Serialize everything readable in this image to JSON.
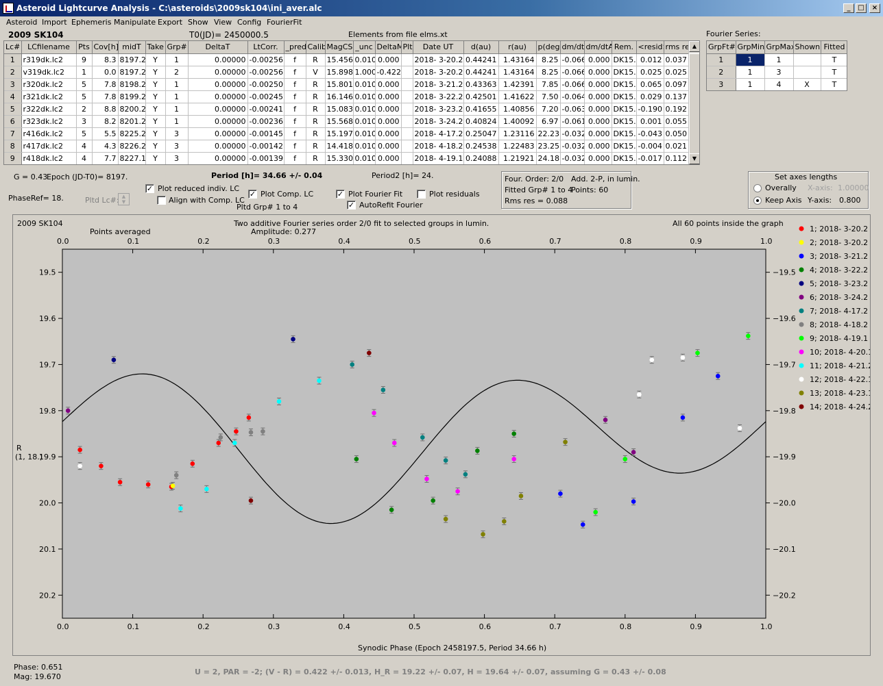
{
  "window": {
    "title": "Asteroid Lightcurve Analysis - C:\\asteroids\\2009sk104\\ini_aver.alc",
    "min": "_",
    "max": "□",
    "close": "×"
  },
  "menu": [
    "Asteroid",
    "Import",
    "Ephemeris",
    "Manipulate",
    "Export",
    "Show",
    "View",
    "Config",
    "FourierFit"
  ],
  "header": {
    "asteroid": "2009 SK104",
    "t0": "T0(JD)= 2450000.5",
    "elements": "Elements from file elms.xt",
    "fourier_label": "Fourier Series:"
  },
  "lc_table": {
    "columns": [
      "Lc#",
      "LCfilename",
      "Pts",
      "Cov[h]",
      "midT",
      "Take",
      "Grp#",
      "DeltaT",
      "LtCorr.",
      "_pred.",
      "Calib.",
      "MagCS",
      "_unc",
      "DeltaM",
      "Plt",
      "Date UT",
      "d(au)",
      "r(au)",
      "p(deg)",
      "dm/dt",
      "dm/dtA",
      "Rem.",
      "<resid>",
      "rms res"
    ],
    "rows": [
      [
        "1",
        "r319dk.lc2",
        "9",
        "8.3",
        "8197.2",
        "Y",
        "1",
        "0.00000",
        "-0.00256",
        "f",
        "R",
        "15.456",
        "0.010",
        "0.000",
        "",
        "2018- 3-20.2",
        "0.44241",
        "1.43164",
        "8.25",
        "-0.066",
        "0.000",
        "DK15...",
        "0.012",
        "0.037"
      ],
      [
        "2",
        "v319dk.lc2",
        "1",
        "0.0",
        "8197.2",
        "Y",
        "2",
        "0.00000",
        "-0.00256",
        "f",
        "V",
        "15.898",
        "1.000",
        "-0.422",
        "",
        "2018- 3-20.2",
        "0.44241",
        "1.43164",
        "8.25",
        "-0.066",
        "0.000",
        "DK15...",
        "0.025",
        "0.025"
      ],
      [
        "3",
        "r320dk.lc2",
        "5",
        "7.8",
        "8198.2",
        "Y",
        "1",
        "0.00000",
        "-0.00250",
        "f",
        "R",
        "15.801",
        "0.010",
        "0.000",
        "",
        "2018- 3-21.2",
        "0.43363",
        "1.42391",
        "7.85",
        "-0.066",
        "0.000",
        "DK15...",
        "0.065",
        "0.097"
      ],
      [
        "4",
        "r321dk.lc2",
        "5",
        "7.8",
        "8199.2",
        "Y",
        "1",
        "0.00000",
        "-0.00245",
        "f",
        "R",
        "16.146",
        "0.010",
        "0.000",
        "",
        "2018- 3-22.2",
        "0.42501",
        "1.41622",
        "7.50",
        "-0.064",
        "0.000",
        "DK15...",
        "0.029",
        "0.137"
      ],
      [
        "5",
        "r322dk.lc2",
        "2",
        "8.8",
        "8200.2",
        "Y",
        "1",
        "0.00000",
        "-0.00241",
        "f",
        "R",
        "15.083",
        "0.010",
        "0.000",
        "",
        "2018- 3-23.2",
        "0.41655",
        "1.40856",
        "7.20",
        "-0.063",
        "0.000",
        "DK15...",
        "-0.190",
        "0.192"
      ],
      [
        "6",
        "r323dk.lc2",
        "3",
        "8.2",
        "8201.2",
        "Y",
        "1",
        "0.00000",
        "-0.00236",
        "f",
        "R",
        "15.568",
        "0.010",
        "0.000",
        "",
        "2018- 3-24.2",
        "0.40824",
        "1.40092",
        "6.97",
        "-0.061",
        "0.000",
        "DK15...",
        "0.001",
        "0.055"
      ],
      [
        "7",
        "r416dk.lc2",
        "5",
        "5.5",
        "8225.2",
        "Y",
        "3",
        "0.00000",
        "-0.00145",
        "f",
        "R",
        "15.197",
        "0.010",
        "0.000",
        "",
        "2018- 4-17.2",
        "0.25047",
        "1.23116",
        "22.23",
        "-0.032",
        "0.000",
        "DK15...",
        "-0.043",
        "0.050"
      ],
      [
        "8",
        "r417dk.lc2",
        "4",
        "4.3",
        "8226.2",
        "Y",
        "3",
        "0.00000",
        "-0.00142",
        "f",
        "R",
        "14.418",
        "0.010",
        "0.000",
        "",
        "2018- 4-18.2",
        "0.24538",
        "1.22483",
        "23.25",
        "-0.032",
        "0.000",
        "DK15...",
        "-0.004",
        "0.021"
      ],
      [
        "9",
        "r418dk.lc2",
        "4",
        "7.7",
        "8227.1",
        "Y",
        "3",
        "0.00000",
        "-0.00139",
        "f",
        "R",
        "15.330",
        "0.010",
        "0.000",
        "",
        "2018- 4-19.1",
        "0.24088",
        "1.21921",
        "24.18",
        "-0.032",
        "0.000",
        "DK15...",
        "-0.017",
        "0.112"
      ]
    ]
  },
  "fourier_table": {
    "columns": [
      "GrpFt#",
      "GrpMin",
      "GrpMax",
      "Shown",
      "Fitted"
    ],
    "rows": [
      [
        "1",
        "1",
        "1",
        "",
        "T"
      ],
      [
        "2",
        "1",
        "3",
        "",
        "T"
      ],
      [
        "3",
        "1",
        "4",
        "X",
        "T"
      ]
    ]
  },
  "controls": {
    "g": "G = 0.43",
    "epoch": "Epoch (JD-T0)= 8197.",
    "phaseref": "PhaseRef= 18.",
    "pltd_lc": "Pltd Lc#:",
    "plot_reduced": "Plot reduced indiv. LC",
    "align": "Align with Comp. LC",
    "plot_comp": "Plot Comp. LC",
    "pltd_grp": "Pltd Grp#  1   to   4",
    "period": "Period [h]= 34.66 +/- 0.04",
    "period2": "Period2 [h]= 24.",
    "plot_fourier": "Plot Fourier Fit",
    "autorefit": "AutoRefit Fourier",
    "plot_resid": "Plot residuals",
    "four_order": "Four. Order:  2/0",
    "add": "Add. 2-P, in lumin.",
    "fitted": "Fitted Grp# 1 to 4",
    "points": "Points: 60",
    "rms": "Rms res     = 0.088",
    "axes_title": "Set axes lengths",
    "overally": "Overally",
    "keep_axis": "Keep Axis",
    "xaxis_lbl": "X-axis:",
    "xaxis_val": "1.00000",
    "yaxis_lbl": "Y-axis:",
    "yaxis_val": "0.800"
  },
  "plot": {
    "asteroid": "2009 SK104",
    "points_averaged": "Points averaged",
    "title": "Two additive Fourier series order 2/0 fit to selected groups in lumin.",
    "amplitude": "Amplitude: 0.277",
    "inside": "All 60 points inside the graph",
    "ylabel1": "R",
    "ylabel2": "(1, 18.)",
    "xlabel": "Synodic Phase (Epoch 2458197.5, Period 34.66 h)"
  },
  "chart_data": {
    "type": "scatter",
    "xlim": [
      0,
      1
    ],
    "ylim": [
      20.25,
      19.45
    ],
    "xticks": [
      "0.0",
      "0.1",
      "0.2",
      "0.3",
      "0.4",
      "0.5",
      "0.6",
      "0.7",
      "0.8",
      "0.9",
      "1.0"
    ],
    "yticks": [
      "19.5",
      "19.6",
      "19.7",
      "19.8",
      "19.9",
      "20.0",
      "20.1",
      "20.2"
    ],
    "fit": {
      "mean": 19.86,
      "a1": 0.055,
      "p1": 0.4,
      "a2": 0.13,
      "p2": 0.38
    },
    "series": [
      {
        "name": "1; 2018- 3-20.2",
        "color": "#ff0000",
        "points": [
          [
            0.025,
            19.885
          ],
          [
            0.055,
            19.92
          ],
          [
            0.082,
            19.955
          ],
          [
            0.122,
            19.96
          ],
          [
            0.155,
            19.965
          ],
          [
            0.185,
            19.915
          ],
          [
            0.222,
            19.87
          ],
          [
            0.247,
            19.845
          ],
          [
            0.265,
            19.815
          ]
        ]
      },
      {
        "name": "2; 2018- 3-20.2",
        "color": "#ffff00",
        "points": [
          [
            0.157,
            19.963
          ]
        ]
      },
      {
        "name": "3; 2018- 3-21.2",
        "color": "#0000ff",
        "points": [
          [
            0.708,
            19.98
          ],
          [
            0.74,
            20.047
          ],
          [
            0.812,
            19.997
          ],
          [
            0.882,
            19.815
          ],
          [
            0.932,
            19.725
          ]
        ]
      },
      {
        "name": "4; 2018- 3-22.2",
        "color": "#008000",
        "points": [
          [
            0.418,
            19.905
          ],
          [
            0.468,
            20.015
          ],
          [
            0.527,
            19.995
          ],
          [
            0.59,
            19.887
          ],
          [
            0.642,
            19.85
          ]
        ]
      },
      {
        "name": "5; 2018- 3-23.2",
        "color": "#000080",
        "points": [
          [
            0.073,
            19.69
          ],
          [
            0.328,
            19.645
          ]
        ]
      },
      {
        "name": "6; 2018- 3-24.2",
        "color": "#800080",
        "points": [
          [
            0.008,
            19.8
          ],
          [
            0.772,
            19.82
          ],
          [
            0.812,
            19.89
          ]
        ]
      },
      {
        "name": "7; 2018- 4-17.2",
        "color": "#008080",
        "points": [
          [
            0.412,
            19.7
          ],
          [
            0.456,
            19.755
          ],
          [
            0.512,
            19.858
          ],
          [
            0.545,
            19.908
          ],
          [
            0.573,
            19.938
          ]
        ]
      },
      {
        "name": "8; 2018- 4-18.2",
        "color": "#808080",
        "points": [
          [
            0.162,
            19.94
          ],
          [
            0.225,
            19.858
          ],
          [
            0.268,
            19.847
          ],
          [
            0.285,
            19.845
          ]
        ]
      },
      {
        "name": "9; 2018- 4-19.1",
        "color": "#00ff00",
        "points": [
          [
            0.758,
            20.02
          ],
          [
            0.8,
            19.905
          ],
          [
            0.903,
            19.675
          ],
          [
            0.975,
            19.638
          ]
        ]
      },
      {
        "name": "10; 2018- 4-20.1",
        "color": "#ff00ff",
        "points": [
          [
            0.443,
            19.805
          ],
          [
            0.472,
            19.87
          ],
          [
            0.518,
            19.948
          ],
          [
            0.562,
            19.975
          ],
          [
            0.642,
            19.905
          ]
        ]
      },
      {
        "name": "11; 2018- 4-21.2",
        "color": "#00ffff",
        "points": [
          [
            0.168,
            20.012
          ],
          [
            0.205,
            19.97
          ],
          [
            0.245,
            19.87
          ],
          [
            0.308,
            19.78
          ],
          [
            0.365,
            19.735
          ]
        ]
      },
      {
        "name": "12; 2018- 4-22.1",
        "color": "#ffffff",
        "points": [
          [
            0.025,
            19.92
          ],
          [
            0.82,
            19.765
          ],
          [
            0.838,
            19.69
          ],
          [
            0.882,
            19.685
          ],
          [
            0.963,
            19.838
          ]
        ]
      },
      {
        "name": "13; 2018- 4-23.1",
        "color": "#808000",
        "points": [
          [
            0.545,
            20.035
          ],
          [
            0.598,
            20.068
          ],
          [
            0.628,
            20.04
          ],
          [
            0.652,
            19.985
          ],
          [
            0.715,
            19.868
          ]
        ]
      },
      {
        "name": "14; 2018- 4-24.2",
        "color": "#800000",
        "points": [
          [
            0.268,
            19.995
          ],
          [
            0.436,
            19.675
          ]
        ]
      }
    ]
  },
  "status": {
    "phase": "Phase:  0.651",
    "mag": "Mag:    19.670",
    "summary": "U = 2, PAR = -2; (V - R) = 0.422 +/- 0.013, H_R = 19.22 +/- 0.07, H = 19.64 +/- 0.07, assuming G = 0.43 +/- 0.08"
  }
}
